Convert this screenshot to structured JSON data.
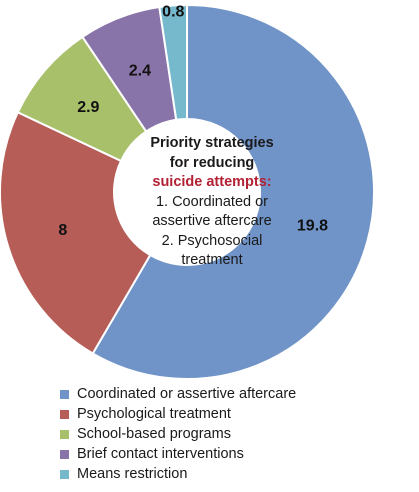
{
  "chart_data": {
    "type": "pie",
    "variant": "donut",
    "categories": [
      "Coordinated or assertive aftercare",
      "Psychological treatment",
      "School-based programs",
      "Brief contact interventions",
      "Means restriction"
    ],
    "values": [
      19.8,
      8,
      2.9,
      2.4,
      0.8
    ],
    "value_labels": [
      "19.8",
      "8",
      "2.9",
      "2.4",
      "0.8"
    ],
    "colors": [
      "#7094C8",
      "#B65D58",
      "#A9C06B",
      "#8974A9",
      "#76B9CD"
    ],
    "legend_position": "bottom",
    "center_text": {
      "line1": "Priority strategies",
      "line2": "for reducing",
      "line3": "suicide attempts:",
      "line4": "1. Coordinated or",
      "line5": "assertive aftercare",
      "line6": "2. Psychosocial",
      "line7": "treatment"
    }
  }
}
